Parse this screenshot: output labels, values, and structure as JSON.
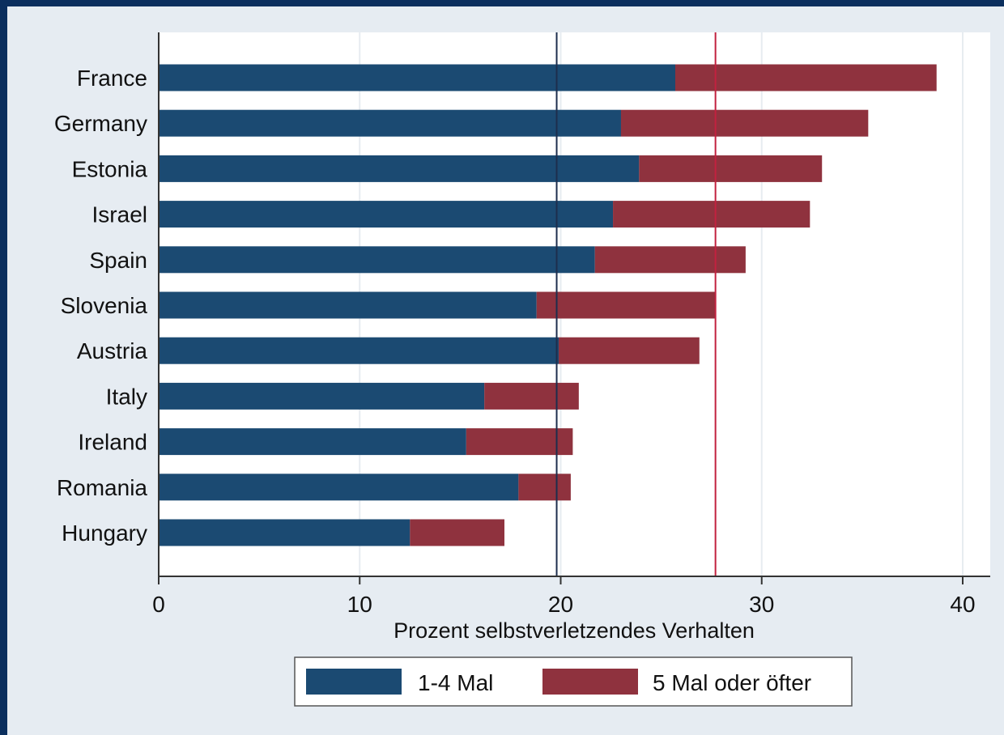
{
  "chart_data": {
    "type": "bar",
    "orientation": "horizontal",
    "stacked": true,
    "categories": [
      "France",
      "Germany",
      "Estonia",
      "Israel",
      "Spain",
      "Slovenia",
      "Austria",
      "Italy",
      "Ireland",
      "Romania",
      "Hungary"
    ],
    "series": [
      {
        "name": "1-4 Mal",
        "color": "#1b4a72",
        "values": [
          25.7,
          23.0,
          23.9,
          22.6,
          21.7,
          18.8,
          19.9,
          16.2,
          15.3,
          17.9,
          12.5
        ]
      },
      {
        "name": "5 Mal oder öfter",
        "color": "#8f323e",
        "values": [
          13.0,
          12.3,
          9.1,
          9.8,
          7.5,
          8.9,
          7.0,
          4.7,
          5.3,
          2.6,
          4.7
        ]
      }
    ],
    "reference_lines": [
      {
        "value": 19.8,
        "color": "#1d2e4d"
      },
      {
        "value": 27.7,
        "color": "#c2223f"
      }
    ],
    "xlabel": "Prozent selbstverletzendes Verhalten",
    "xlim": [
      0,
      41
    ],
    "xticks": [
      "0",
      "10",
      "20",
      "30",
      "40"
    ],
    "xtick_values": [
      0,
      10,
      20,
      30,
      40
    ],
    "grid": true,
    "legend_position": "bottom"
  }
}
